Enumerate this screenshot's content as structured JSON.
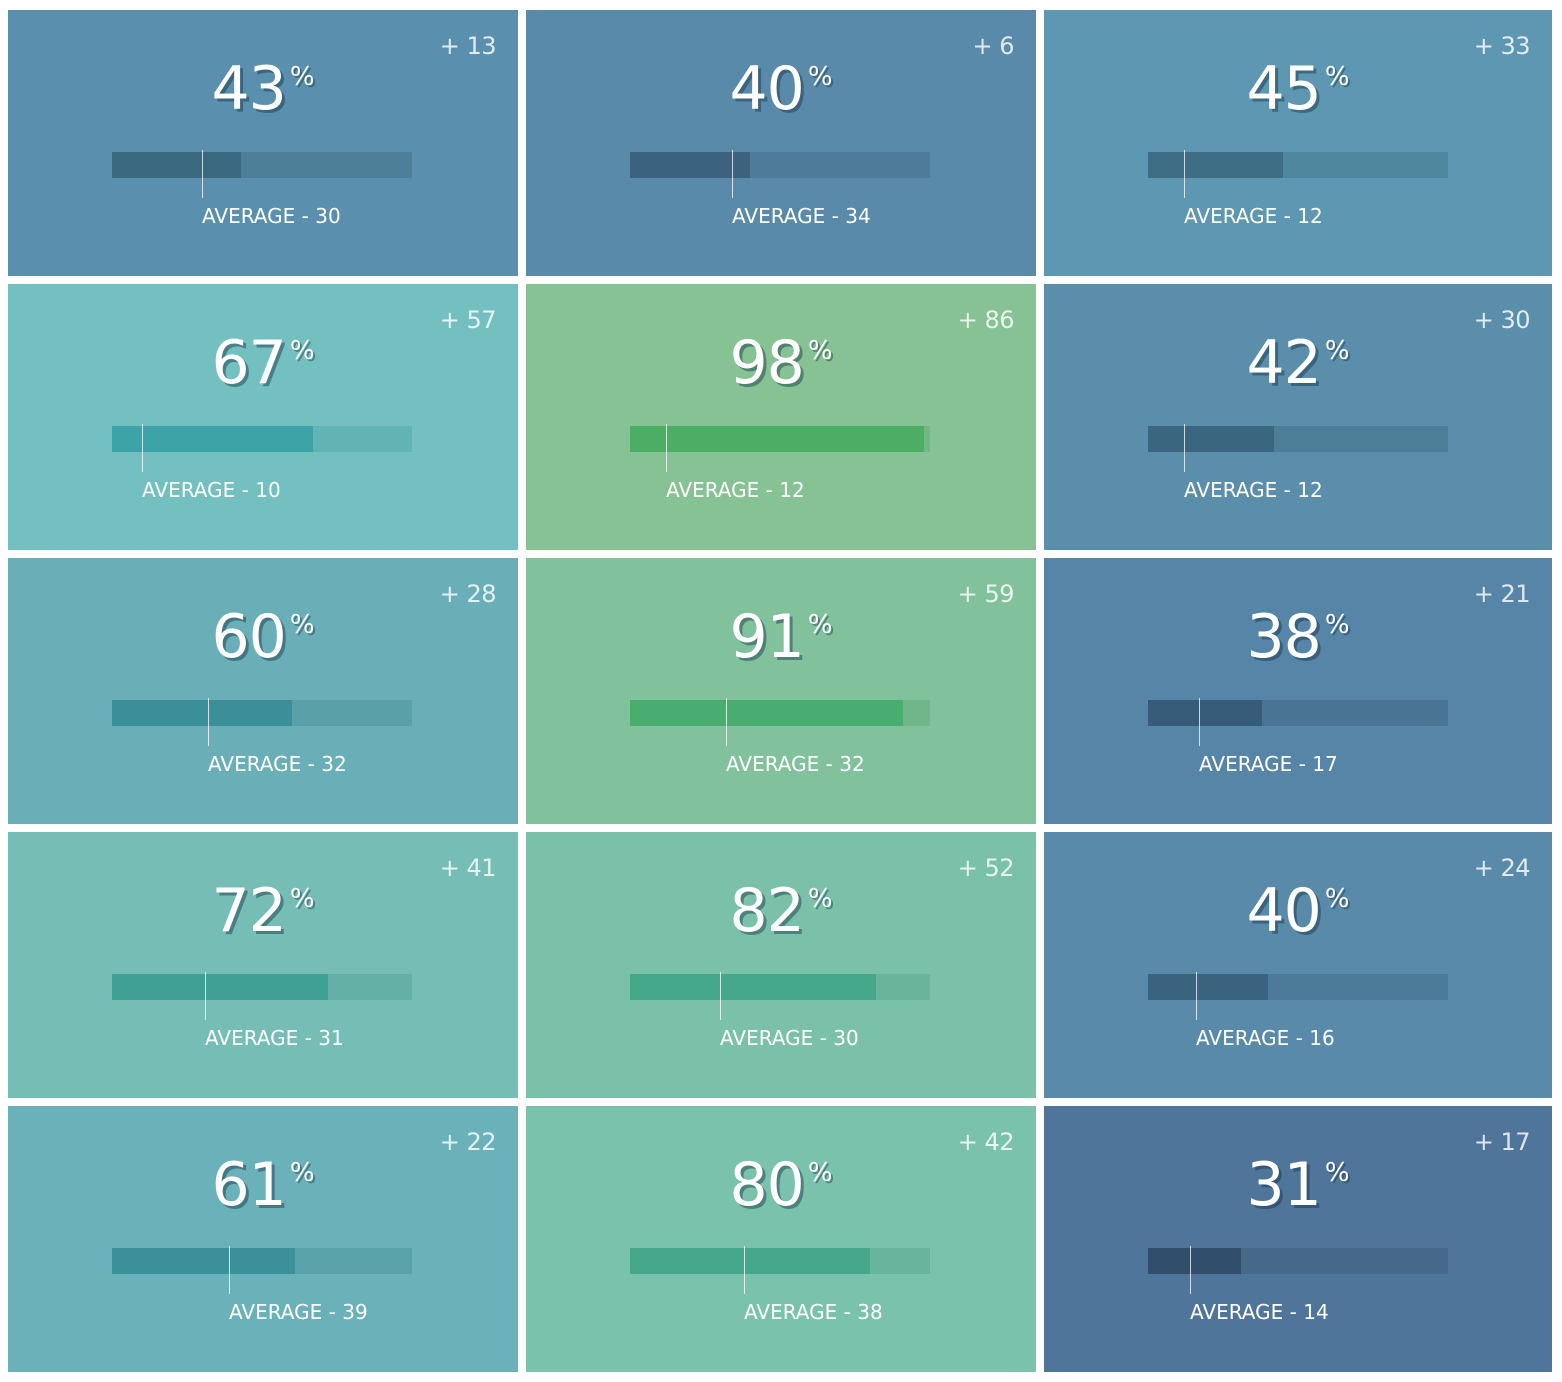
{
  "average_label": "AVERAGE",
  "average_separator": " - ",
  "percent_sign": "%",
  "tiles": [
    {
      "value": 43,
      "delta": "+ 13",
      "average": 30,
      "bg": "#5a8fad",
      "fill": "#3b6980",
      "track": "#4d7f99"
    },
    {
      "value": 40,
      "delta": "+ 6",
      "average": 34,
      "bg": "#5a8aaa",
      "fill": "#3b6380",
      "track": "#4d7b99"
    },
    {
      "value": 45,
      "delta": "+ 33",
      "average": 12,
      "bg": "#5e97b1",
      "fill": "#3d6e86",
      "track": "#4f879f"
    },
    {
      "value": 67,
      "delta": "+ 57",
      "average": 10,
      "bg": "#74bfc0",
      "fill": "#3ea3a7",
      "track": "#62b3b4"
    },
    {
      "value": 98,
      "delta": "+ 86",
      "average": 12,
      "bg": "#86c293",
      "fill": "#4cad65",
      "track": "#73b781"
    },
    {
      "value": 42,
      "delta": "+ 30",
      "average": 12,
      "bg": "#5a8eab",
      "fill": "#3a667f",
      "track": "#4c7e98"
    },
    {
      "value": 60,
      "delta": "+ 28",
      "average": 32,
      "bg": "#6aafb8",
      "fill": "#3a8f99",
      "track": "#5aa0a9"
    },
    {
      "value": 91,
      "delta": "+ 59",
      "average": 32,
      "bg": "#81c29c",
      "fill": "#4aad70",
      "track": "#6fb78a"
    },
    {
      "value": 38,
      "delta": "+ 21",
      "average": 17,
      "bg": "#5685a7",
      "fill": "#375c7a",
      "track": "#4a7592"
    },
    {
      "value": 72,
      "delta": "+ 41",
      "average": 31,
      "bg": "#76beb5",
      "fill": "#40a095",
      "track": "#64afa6"
    },
    {
      "value": 82,
      "delta": "+ 52",
      "average": 30,
      "bg": "#7bc1aa",
      "fill": "#45a88a",
      "track": "#69b49b"
    },
    {
      "value": 40,
      "delta": "+ 24",
      "average": 16,
      "bg": "#5a8aaa",
      "fill": "#3a6380",
      "track": "#4c7b99"
    },
    {
      "value": 61,
      "delta": "+ 22",
      "average": 39,
      "bg": "#6bb1b9",
      "fill": "#3b9099",
      "track": "#5aa2aa"
    },
    {
      "value": 80,
      "delta": "+ 42",
      "average": 38,
      "bg": "#7bc2ad",
      "fill": "#45a88c",
      "track": "#68b49d"
    },
    {
      "value": 31,
      "delta": "+ 17",
      "average": 14,
      "bg": "#50759b",
      "fill": "#314f6d",
      "track": "#46698a"
    }
  ],
  "average_label_positions_note": ""
}
